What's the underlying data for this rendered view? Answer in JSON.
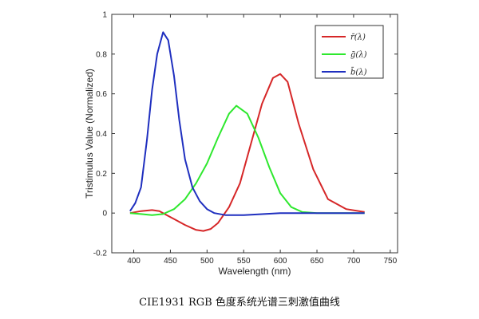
{
  "caption": "CIE1931 RGB 色度系统光谱三刺激值曲线",
  "chart_data": {
    "type": "line",
    "title": "",
    "xlabel": "Wavelength (nm)",
    "ylabel": "Tristimulus Value (Normalized)",
    "xlim": [
      370,
      760
    ],
    "ylim": [
      -0.2,
      1.0
    ],
    "xticks": [
      400,
      450,
      500,
      550,
      600,
      650,
      700,
      750
    ],
    "yticks": [
      -0.2,
      0,
      0.2,
      0.4,
      0.6,
      0.8,
      1
    ],
    "ytick_labels": [
      "-0.2",
      "0",
      "0.2",
      "0.4",
      "0.6",
      "0.8",
      "1"
    ],
    "grid": false,
    "legend_position": "top-right",
    "series": [
      {
        "name": "r̄(λ)",
        "color": "#d62728",
        "x": [
          395,
          410,
          425,
          435,
          445,
          455,
          470,
          485,
          495,
          505,
          515,
          530,
          545,
          560,
          575,
          590,
          600,
          610,
          625,
          645,
          665,
          690,
          715
        ],
        "y": [
          0.0,
          0.01,
          0.015,
          0.01,
          -0.01,
          -0.03,
          -0.06,
          -0.085,
          -0.09,
          -0.08,
          -0.05,
          0.03,
          0.15,
          0.35,
          0.55,
          0.68,
          0.7,
          0.66,
          0.45,
          0.22,
          0.07,
          0.02,
          0.005
        ]
      },
      {
        "name": "ḡ(λ)",
        "color": "#2ee82e",
        "x": [
          395,
          410,
          425,
          440,
          455,
          470,
          485,
          500,
          515,
          530,
          540,
          555,
          570,
          585,
          600,
          615,
          630,
          650,
          715
        ],
        "y": [
          0.0,
          -0.005,
          -0.01,
          -0.005,
          0.02,
          0.07,
          0.15,
          0.25,
          0.38,
          0.5,
          0.54,
          0.5,
          0.38,
          0.23,
          0.1,
          0.03,
          0.005,
          0.0,
          0.0
        ]
      },
      {
        "name": "b̄(λ)",
        "color": "#1f2fbf",
        "x": [
          395,
          402,
          410,
          418,
          425,
          432,
          440,
          447,
          455,
          462,
          470,
          480,
          490,
          500,
          510,
          525,
          550,
          600,
          650,
          715
        ],
        "y": [
          0.01,
          0.05,
          0.13,
          0.37,
          0.62,
          0.8,
          0.91,
          0.87,
          0.69,
          0.47,
          0.27,
          0.13,
          0.06,
          0.02,
          0.0,
          -0.01,
          -0.01,
          0.0,
          0.0,
          0.0
        ]
      }
    ]
  }
}
